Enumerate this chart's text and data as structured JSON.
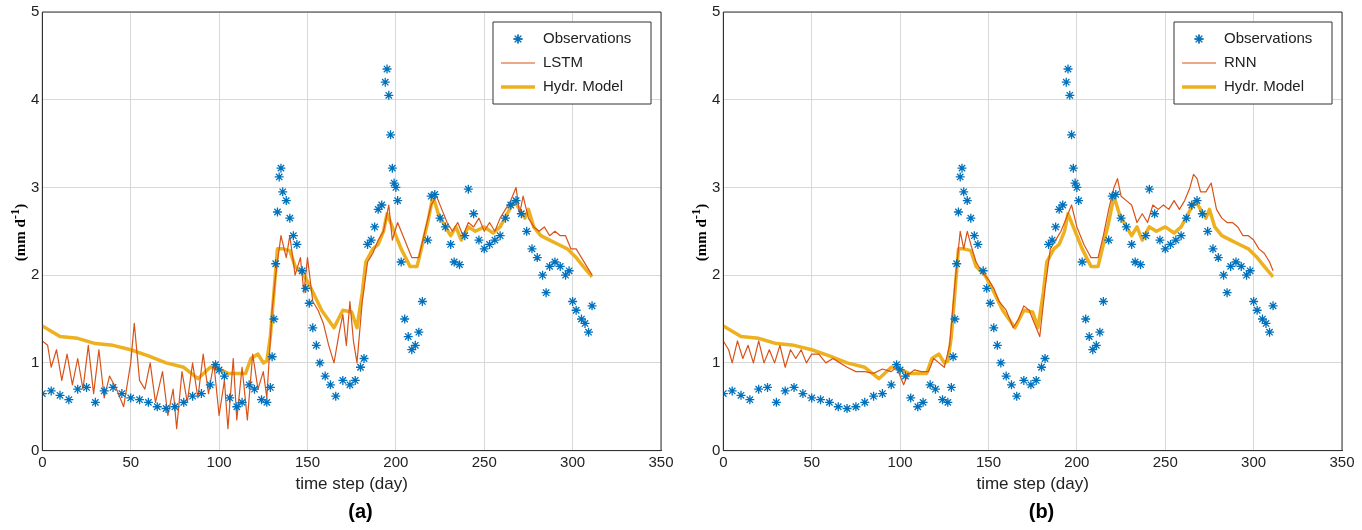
{
  "chart_data": [
    {
      "type": "line",
      "xlabel": "time step (day)",
      "ylabel": "(mm d$^{-1}$)",
      "annotations": [
        "(a)"
      ],
      "xlim": [
        0,
        350
      ],
      "xticks": [
        0,
        50,
        100,
        150,
        200,
        250,
        300,
        350
      ],
      "ylim": [
        0,
        5
      ],
      "yticks": [
        0,
        1,
        2,
        3,
        4,
        5
      ],
      "grid": true,
      "legend": "top right",
      "series": [
        {
          "name": "Observations",
          "type": "scatter",
          "marker": "cross",
          "color": "#0072bd",
          "x": [
            0,
            5,
            10,
            15,
            20,
            25,
            30,
            35,
            40,
            45,
            50,
            55,
            60,
            65,
            70,
            75,
            80,
            85,
            90,
            95,
            98,
            100,
            103,
            106,
            110,
            113,
            117,
            120,
            124,
            127,
            129,
            130,
            131,
            132,
            133,
            134,
            135,
            136,
            138,
            140,
            142,
            144,
            147,
            149,
            151,
            153,
            155,
            157,
            160,
            163,
            166,
            170,
            174,
            177,
            180,
            182,
            184,
            186,
            188,
            190,
            192,
            194,
            195,
            196,
            197,
            198,
            199,
            200,
            201,
            203,
            205,
            207,
            209,
            211,
            213,
            215,
            218,
            220,
            222,
            225,
            228,
            231,
            233,
            236,
            239,
            241,
            244,
            247,
            250,
            253,
            256,
            259,
            262,
            265,
            268,
            271,
            274,
            277,
            280,
            283,
            285,
            287,
            290,
            293,
            296,
            298,
            300,
            302,
            305,
            307,
            309,
            311
          ],
          "values": [
            0.65,
            0.68,
            0.63,
            0.58,
            0.7,
            0.72,
            0.55,
            0.68,
            0.72,
            0.65,
            0.6,
            0.58,
            0.55,
            0.5,
            0.48,
            0.5,
            0.55,
            0.62,
            0.65,
            0.75,
            0.98,
            0.92,
            0.85,
            0.6,
            0.5,
            0.55,
            0.75,
            0.7,
            0.58,
            0.55,
            0.72,
            1.07,
            1.5,
            2.13,
            2.72,
            3.12,
            3.22,
            2.95,
            2.85,
            2.65,
            2.45,
            2.35,
            2.05,
            1.85,
            1.68,
            1.4,
            1.2,
            1.0,
            0.85,
            0.75,
            0.62,
            0.8,
            0.75,
            0.8,
            0.95,
            1.05,
            2.35,
            2.4,
            2.55,
            2.75,
            2.8,
            4.2,
            4.35,
            4.05,
            3.6,
            3.22,
            3.05,
            3.0,
            2.85,
            2.15,
            1.5,
            1.3,
            1.15,
            1.2,
            1.35,
            1.7,
            2.4,
            2.9,
            2.92,
            2.65,
            2.55,
            2.35,
            2.15,
            2.12,
            2.45,
            2.98,
            2.7,
            2.4,
            2.3,
            2.35,
            2.4,
            2.45,
            2.65,
            2.8,
            2.85,
            2.7,
            2.5,
            2.3,
            2.2,
            2.0,
            1.8,
            2.1,
            2.15,
            2.1,
            2.0,
            2.05,
            1.7,
            1.6,
            1.5,
            1.45,
            1.35,
            1.65
          ]
        },
        {
          "name": "LSTM",
          "color": "#d95319",
          "x": [
            0,
            3,
            5,
            8,
            11,
            14,
            17,
            20,
            23,
            26,
            29,
            32,
            35,
            38,
            42,
            46,
            50,
            52,
            55,
            58,
            61,
            64,
            68,
            71,
            74,
            76,
            79,
            82,
            85,
            88,
            91,
            94,
            97,
            100,
            103,
            105,
            108,
            110,
            113,
            116,
            119,
            122,
            125,
            127,
            130,
            132,
            135,
            138,
            140,
            143,
            146,
            148,
            150,
            153,
            156,
            159,
            162,
            165,
            168,
            170,
            172,
            174,
            176,
            178,
            181,
            184,
            187,
            190,
            193,
            196,
            198,
            201,
            205,
            209,
            213,
            217,
            220,
            223,
            226,
            229,
            232,
            235,
            238,
            241,
            244,
            247,
            250,
            253,
            256,
            259,
            262,
            265,
            268,
            270,
            272,
            275,
            278,
            281,
            284,
            287,
            290,
            293,
            296,
            299,
            302,
            305,
            308,
            311
          ],
          "values": [
            1.25,
            1.2,
            0.95,
            1.15,
            0.8,
            1.1,
            0.75,
            1.05,
            0.7,
            1.2,
            0.65,
            1.15,
            0.6,
            0.85,
            0.7,
            0.5,
            1.0,
            1.45,
            0.8,
            0.7,
            1.0,
            0.55,
            0.9,
            0.4,
            0.7,
            0.25,
            0.9,
            0.55,
            1.0,
            0.6,
            1.1,
            0.65,
            1.0,
            0.4,
            0.8,
            0.25,
            1.05,
            0.35,
            0.95,
            0.35,
            1.1,
            0.7,
            0.9,
            0.6,
            1.6,
            2.0,
            2.45,
            2.2,
            2.45,
            2.0,
            2.2,
            1.8,
            2.2,
            1.7,
            1.6,
            1.45,
            1.2,
            1.0,
            1.35,
            1.55,
            1.2,
            1.7,
            1.25,
            1.0,
            1.7,
            2.15,
            2.25,
            2.4,
            2.5,
            2.8,
            2.4,
            2.6,
            2.4,
            2.2,
            2.2,
            2.55,
            2.8,
            2.9,
            2.75,
            2.6,
            2.5,
            2.6,
            2.45,
            2.6,
            2.55,
            2.65,
            2.5,
            2.6,
            2.5,
            2.65,
            2.75,
            2.85,
            3.0,
            2.7,
            2.9,
            2.65,
            2.55,
            2.5,
            2.55,
            2.45,
            2.5,
            2.45,
            2.45,
            2.3,
            2.3,
            2.2,
            2.1,
            2.0
          ]
        },
        {
          "name": "Hydr. Model",
          "color": "#edb120",
          "x": [
            0,
            10,
            20,
            30,
            40,
            50,
            60,
            70,
            80,
            88,
            95,
            100,
            105,
            110,
            115,
            118,
            122,
            125,
            127,
            129,
            131,
            133,
            136,
            140,
            143,
            148,
            152,
            158,
            165,
            170,
            175,
            178,
            181,
            183,
            187,
            190,
            193,
            195,
            198,
            203,
            208,
            212,
            215,
            218,
            221,
            224,
            228,
            231,
            234,
            237,
            241,
            245,
            250,
            255,
            259,
            263,
            267,
            270,
            273,
            275,
            278,
            282,
            287,
            292,
            297,
            302,
            306,
            311
          ],
          "values": [
            1.42,
            1.3,
            1.28,
            1.22,
            1.2,
            1.15,
            1.08,
            1.0,
            0.95,
            0.82,
            0.95,
            0.93,
            0.88,
            0.88,
            0.88,
            1.05,
            1.1,
            1.0,
            1.02,
            1.3,
            1.8,
            2.3,
            2.3,
            2.28,
            2.1,
            2.0,
            1.85,
            1.6,
            1.4,
            1.6,
            1.58,
            1.4,
            1.8,
            2.15,
            2.3,
            2.35,
            2.5,
            2.7,
            2.55,
            2.3,
            2.1,
            2.1,
            2.35,
            2.6,
            2.9,
            2.7,
            2.55,
            2.45,
            2.55,
            2.4,
            2.55,
            2.5,
            2.55,
            2.48,
            2.55,
            2.7,
            2.85,
            2.75,
            2.65,
            2.75,
            2.55,
            2.45,
            2.4,
            2.35,
            2.3,
            2.2,
            2.1,
            1.98
          ]
        }
      ]
    },
    {
      "type": "line",
      "xlabel": "time step (day)",
      "ylabel": "(mm d$^{-1}$)",
      "annotations": [
        "(b)"
      ],
      "xlim": [
        0,
        350
      ],
      "xticks": [
        0,
        50,
        100,
        150,
        200,
        250,
        300,
        350
      ],
      "ylim": [
        0,
        5
      ],
      "yticks": [
        0,
        1,
        2,
        3,
        4,
        5
      ],
      "grid": true,
      "legend": "top right",
      "series": [
        {
          "name": "Observations",
          "type": "scatter",
          "marker": "cross",
          "color": "#0072bd",
          "x": [
            0,
            5,
            10,
            15,
            20,
            25,
            30,
            35,
            40,
            45,
            50,
            55,
            60,
            65,
            70,
            75,
            80,
            85,
            90,
            95,
            98,
            100,
            103,
            106,
            110,
            113,
            117,
            120,
            124,
            127,
            129,
            130,
            131,
            132,
            133,
            134,
            135,
            136,
            138,
            140,
            142,
            144,
            147,
            149,
            151,
            153,
            155,
            157,
            160,
            163,
            166,
            170,
            174,
            177,
            180,
            182,
            184,
            186,
            188,
            190,
            192,
            194,
            195,
            196,
            197,
            198,
            199,
            200,
            201,
            203,
            205,
            207,
            209,
            211,
            213,
            215,
            218,
            220,
            222,
            225,
            228,
            231,
            233,
            236,
            239,
            241,
            244,
            247,
            250,
            253,
            256,
            259,
            262,
            265,
            268,
            271,
            274,
            277,
            280,
            283,
            285,
            287,
            290,
            293,
            296,
            298,
            300,
            302,
            305,
            307,
            309,
            311
          ],
          "values": [
            0.65,
            0.68,
            0.63,
            0.58,
            0.7,
            0.72,
            0.55,
            0.68,
            0.72,
            0.65,
            0.6,
            0.58,
            0.55,
            0.5,
            0.48,
            0.5,
            0.55,
            0.62,
            0.65,
            0.75,
            0.98,
            0.92,
            0.85,
            0.6,
            0.5,
            0.55,
            0.75,
            0.7,
            0.58,
            0.55,
            0.72,
            1.07,
            1.5,
            2.13,
            2.72,
            3.12,
            3.22,
            2.95,
            2.85,
            2.65,
            2.45,
            2.35,
            2.05,
            1.85,
            1.68,
            1.4,
            1.2,
            1.0,
            0.85,
            0.75,
            0.62,
            0.8,
            0.75,
            0.8,
            0.95,
            1.05,
            2.35,
            2.4,
            2.55,
            2.75,
            2.8,
            4.2,
            4.35,
            4.05,
            3.6,
            3.22,
            3.05,
            3.0,
            2.85,
            2.15,
            1.5,
            1.3,
            1.15,
            1.2,
            1.35,
            1.7,
            2.4,
            2.9,
            2.92,
            2.65,
            2.55,
            2.35,
            2.15,
            2.12,
            2.45,
            2.98,
            2.7,
            2.4,
            2.3,
            2.35,
            2.4,
            2.45,
            2.65,
            2.8,
            2.85,
            2.7,
            2.5,
            2.3,
            2.2,
            2.0,
            1.8,
            2.1,
            2.15,
            2.1,
            2.0,
            2.05,
            1.7,
            1.6,
            1.5,
            1.45,
            1.35,
            1.65
          ]
        },
        {
          "name": "RNN",
          "color": "#d95319",
          "x": [
            0,
            3,
            5,
            8,
            11,
            14,
            17,
            20,
            23,
            26,
            29,
            32,
            35,
            38,
            41,
            44,
            47,
            50,
            54,
            58,
            62,
            66,
            70,
            75,
            80,
            85,
            90,
            95,
            98,
            100,
            102,
            104,
            108,
            112,
            116,
            119,
            122,
            125,
            128,
            131,
            134,
            136,
            138,
            140,
            143,
            146,
            150,
            153,
            156,
            160,
            164,
            167,
            170,
            173,
            176,
            179,
            182,
            185,
            188,
            191,
            194,
            197,
            200,
            204,
            208,
            212,
            215,
            218,
            221,
            223,
            225,
            228,
            231,
            234,
            237,
            240,
            243,
            246,
            249,
            252,
            255,
            258,
            261,
            264,
            266,
            268,
            270,
            273,
            276,
            279,
            282,
            285,
            288,
            291,
            294,
            297,
            300,
            303,
            306,
            309,
            311
          ],
          "values": [
            1.25,
            1.15,
            1.0,
            1.25,
            1.05,
            1.2,
            1.0,
            1.25,
            1.0,
            1.15,
            1.0,
            1.2,
            0.95,
            1.15,
            1.05,
            1.15,
            1.0,
            1.1,
            1.1,
            1.0,
            1.05,
            1.0,
            0.95,
            0.9,
            0.9,
            0.88,
            0.93,
            0.9,
            0.95,
            0.85,
            0.75,
            0.85,
            0.92,
            0.9,
            0.9,
            1.05,
            1.0,
            0.95,
            1.2,
            1.9,
            2.5,
            2.3,
            2.5,
            2.35,
            2.15,
            2.05,
            1.95,
            1.85,
            1.7,
            1.6,
            1.4,
            1.5,
            1.65,
            1.6,
            1.45,
            1.3,
            1.85,
            2.3,
            2.4,
            2.5,
            2.65,
            2.8,
            2.55,
            2.35,
            2.2,
            2.2,
            2.45,
            2.75,
            3.0,
            3.1,
            2.9,
            2.85,
            2.8,
            2.6,
            2.7,
            2.6,
            2.8,
            2.75,
            2.8,
            2.75,
            2.85,
            2.75,
            2.85,
            3.0,
            3.15,
            3.1,
            2.95,
            2.95,
            3.05,
            2.75,
            2.65,
            2.6,
            2.6,
            2.55,
            2.45,
            2.45,
            2.4,
            2.3,
            2.25,
            2.15,
            2.05
          ]
        },
        {
          "name": "Hydr. Model",
          "color": "#edb120",
          "x": [
            0,
            10,
            20,
            30,
            40,
            50,
            60,
            70,
            80,
            88,
            95,
            100,
            105,
            110,
            115,
            118,
            122,
            125,
            127,
            129,
            131,
            133,
            136,
            140,
            143,
            148,
            152,
            158,
            165,
            170,
            175,
            178,
            181,
            183,
            187,
            190,
            193,
            195,
            198,
            203,
            208,
            212,
            215,
            218,
            221,
            224,
            228,
            231,
            234,
            237,
            241,
            245,
            250,
            255,
            259,
            263,
            267,
            270,
            273,
            275,
            278,
            282,
            287,
            292,
            297,
            302,
            306,
            311
          ],
          "values": [
            1.42,
            1.3,
            1.28,
            1.22,
            1.2,
            1.15,
            1.08,
            1.0,
            0.95,
            0.82,
            0.95,
            0.93,
            0.88,
            0.88,
            0.88,
            1.05,
            1.1,
            1.0,
            1.02,
            1.3,
            1.8,
            2.3,
            2.3,
            2.28,
            2.1,
            2.0,
            1.85,
            1.6,
            1.4,
            1.6,
            1.58,
            1.4,
            1.8,
            2.15,
            2.3,
            2.35,
            2.5,
            2.7,
            2.55,
            2.3,
            2.1,
            2.1,
            2.35,
            2.6,
            2.9,
            2.7,
            2.55,
            2.45,
            2.55,
            2.4,
            2.55,
            2.5,
            2.55,
            2.48,
            2.55,
            2.7,
            2.85,
            2.75,
            2.65,
            2.75,
            2.55,
            2.45,
            2.4,
            2.35,
            2.3,
            2.2,
            2.1,
            1.98
          ]
        }
      ]
    }
  ]
}
